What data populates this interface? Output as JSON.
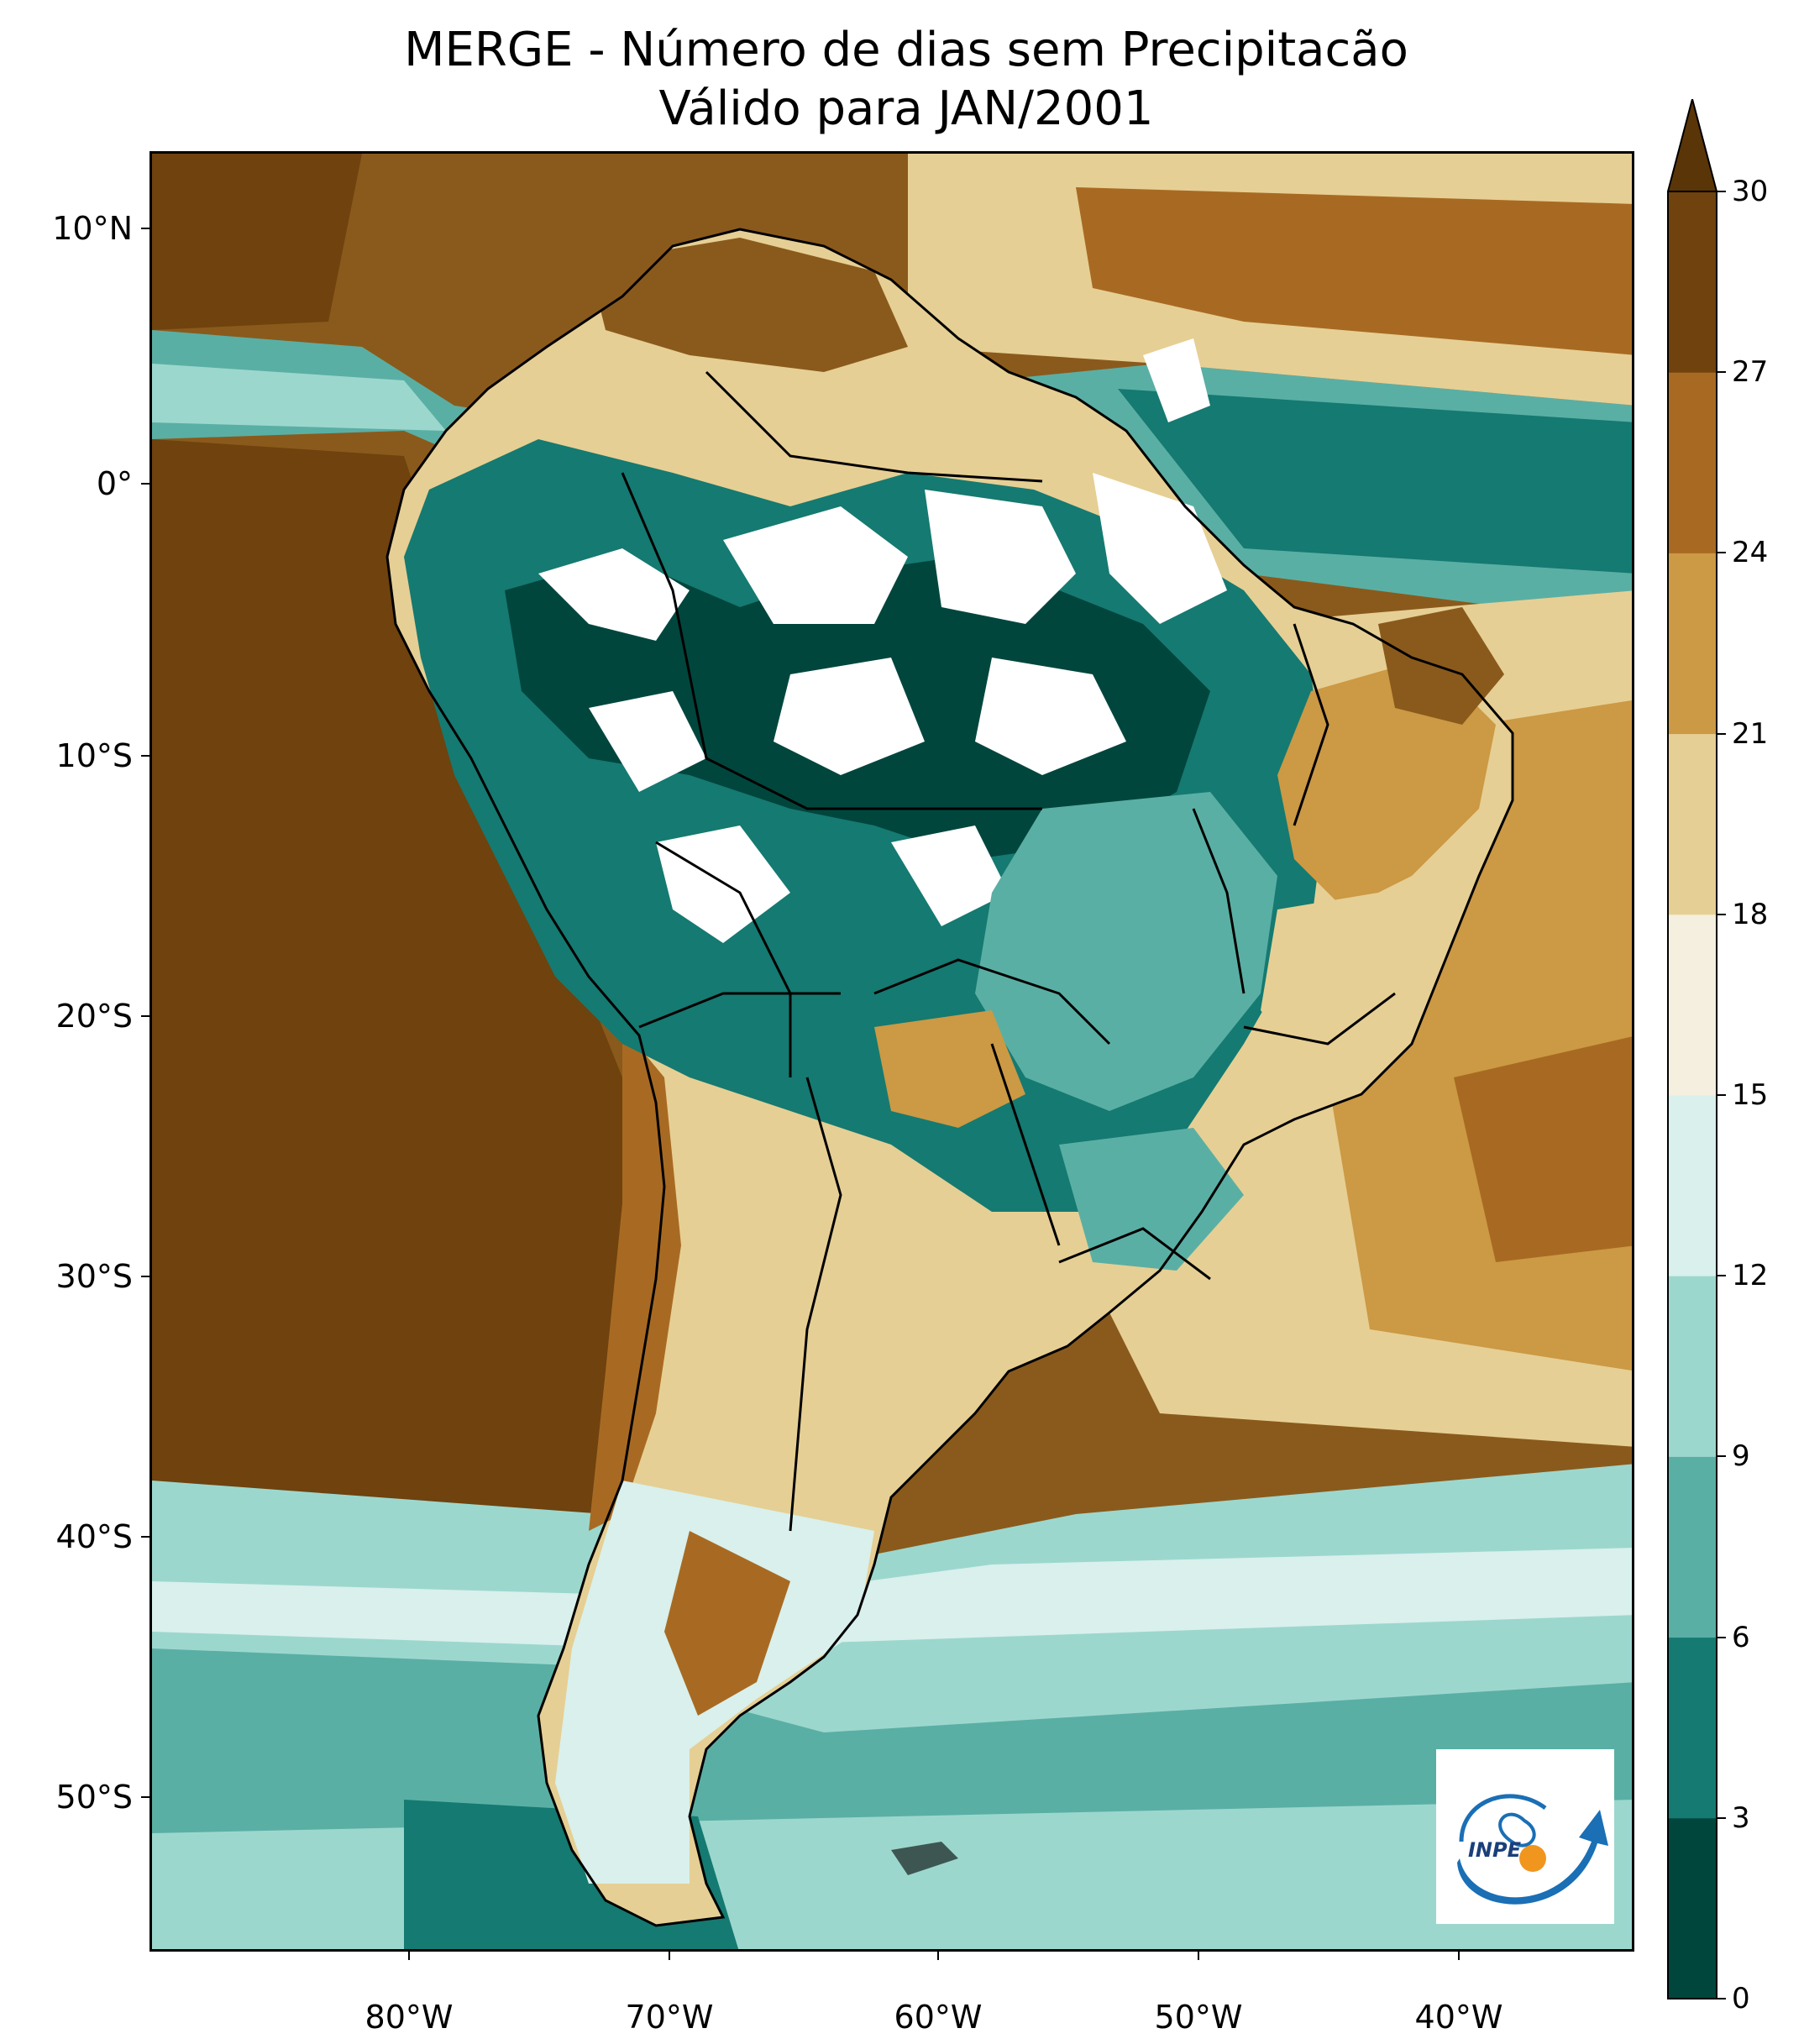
{
  "title": {
    "line1": "MERGE - Número de dias sem Precipitacão",
    "line2": "Válido para JAN/2001"
  },
  "axes": {
    "lat_labels": [
      "10°N",
      "0°",
      "10°S",
      "20°S",
      "30°S",
      "40°S",
      "50°S"
    ],
    "lat_values": [
      10,
      0,
      -10,
      -20,
      -30,
      -40,
      -50
    ],
    "lon_labels": [
      "80°W",
      "70°W",
      "60°W",
      "50°W",
      "40°W"
    ],
    "lon_values": [
      -80,
      -70,
      -60,
      -50,
      -40
    ],
    "lat_range": [
      -56,
      13
    ],
    "lon_range": [
      -90,
      -32
    ]
  },
  "colorbar": {
    "ticks": [
      "0",
      "3",
      "6",
      "9",
      "12",
      "15",
      "18",
      "21",
      "24",
      "27",
      "30"
    ],
    "colors": [
      "#01463d",
      "#157a71",
      "#5aafa4",
      "#9cd7ce",
      "#d9f0ec",
      "#f4efde",
      "#e6cf94",
      "#cc9944",
      "#a86a22",
      "#6f420e"
    ],
    "extend": "max",
    "extend_color": "#5a3508"
  },
  "logo": {
    "text": "INPE"
  },
  "icons": {
    "logo": "inpe-logo-icon"
  }
}
